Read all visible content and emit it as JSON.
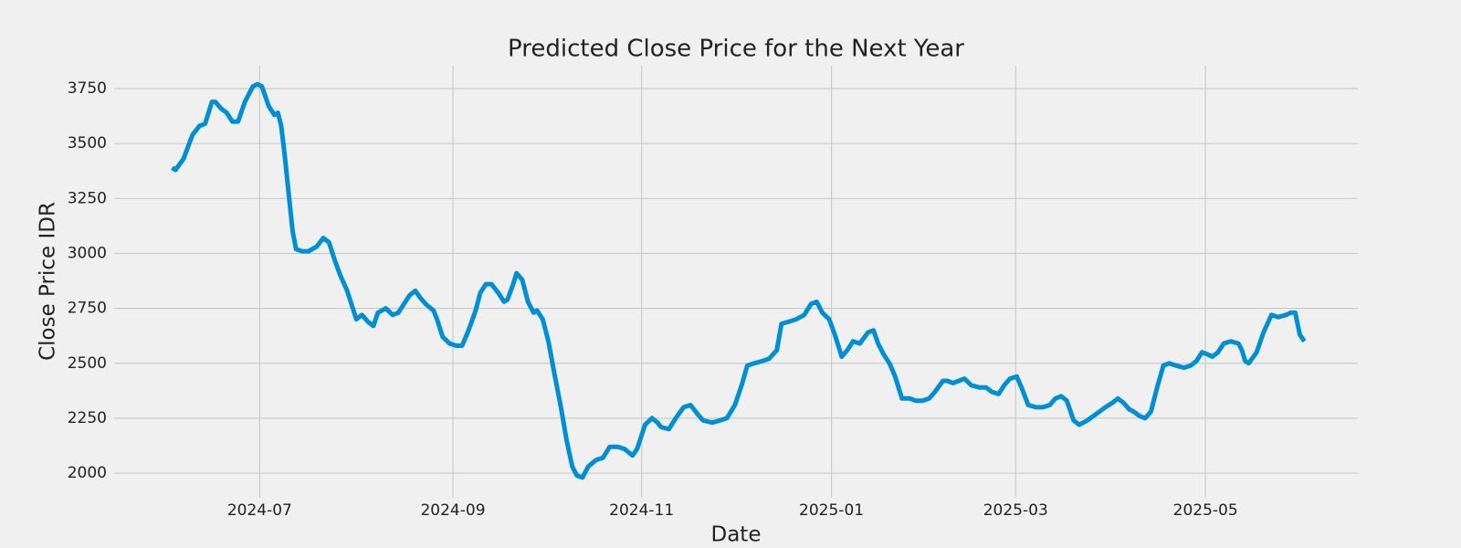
{
  "chart_data": {
    "type": "line",
    "title": "Predicted Close Price for the Next Year",
    "x_label": "Date",
    "y_label": "Close Price IDR",
    "color": "#008fd5",
    "grid": true,
    "x": [
      2024.42,
      2024.423,
      2024.43,
      2024.438,
      2024.444,
      2024.449,
      2024.455,
      2024.458,
      2024.463,
      2024.468,
      2024.473,
      2024.478,
      2024.484,
      2024.491,
      2024.495,
      2024.499,
      2024.505,
      2024.51,
      2024.513,
      2024.516,
      2024.519,
      2024.523,
      2024.526,
      2024.529,
      2024.534,
      2024.54,
      2024.547,
      2024.553,
      2024.558,
      2024.563,
      2024.568,
      2024.574,
      2024.579,
      2024.582,
      2024.587,
      2024.592,
      2024.597,
      2024.601,
      2024.608,
      2024.614,
      2024.619,
      2024.624,
      2024.629,
      2024.634,
      2024.638,
      2024.643,
      2024.65,
      2024.653,
      2024.658,
      2024.664,
      2024.67,
      2024.675,
      2024.68,
      2024.687,
      2024.691,
      2024.696,
      2024.701,
      2024.707,
      2024.712,
      2024.715,
      2024.72,
      2024.723,
      2024.728,
      2024.733,
      2024.738,
      2024.741,
      2024.746,
      2024.751,
      2024.756,
      2024.762,
      2024.767,
      2024.772,
      2024.776,
      2024.781,
      2024.786,
      2024.793,
      2024.799,
      2024.805,
      2024.812,
      2024.818,
      2024.825,
      2024.829,
      2024.836,
      2024.842,
      2024.847,
      2024.85,
      2024.857,
      2024.863,
      2024.87,
      2024.876,
      2024.882,
      2024.887,
      2024.895,
      2024.902,
      2024.908,
      2024.915,
      2024.921,
      2024.926,
      2024.932,
      2024.939,
      2024.945,
      2024.952,
      2024.956,
      2024.963,
      2024.969,
      2024.976,
      2024.982,
      2024.987,
      2024.992,
      2024.998,
      2025.003,
      2025.009,
      2025.014,
      2025.019,
      2025.025,
      2025.032,
      2025.037,
      2025.041,
      2025.046,
      2025.051,
      2025.056,
      2025.062,
      2025.069,
      2025.074,
      2025.08,
      2025.086,
      2025.091,
      2025.098,
      2025.102,
      2025.107,
      2025.112,
      2025.117,
      2025.123,
      2025.13,
      2025.136,
      2025.141,
      2025.147,
      2025.152,
      2025.157,
      2025.163,
      2025.168,
      2025.173,
      2025.18,
      2025.186,
      2025.192,
      2025.197,
      2025.202,
      2025.207,
      2025.213,
      2025.218,
      2025.225,
      2025.233,
      2025.241,
      2025.247,
      2025.252,
      2025.257,
      2025.262,
      2025.266,
      2025.271,
      2025.276,
      2025.281,
      2025.287,
      2025.292,
      2025.297,
      2025.303,
      2025.31,
      2025.316,
      2025.321,
      2025.326,
      2025.331,
      2025.335,
      2025.34,
      2025.345,
      2025.351,
      2025.358,
      2025.361,
      2025.364,
      2025.367,
      2025.374,
      2025.38,
      2025.387,
      2025.393,
      2025.4,
      2025.404,
      2025.408,
      2025.412,
      2025.416
    ],
    "values": [
      3390,
      3380,
      3430,
      3540,
      3580,
      3590,
      3690,
      3690,
      3660,
      3640,
      3600,
      3600,
      3690,
      3760,
      3770,
      3760,
      3670,
      3630,
      3640,
      3580,
      3450,
      3250,
      3100,
      3020,
      3010,
      3010,
      3030,
      3070,
      3050,
      2970,
      2900,
      2830,
      2750,
      2700,
      2720,
      2690,
      2670,
      2730,
      2750,
      2720,
      2730,
      2770,
      2810,
      2830,
      2800,
      2770,
      2740,
      2700,
      2620,
      2590,
      2580,
      2580,
      2640,
      2740,
      2820,
      2860,
      2860,
      2820,
      2780,
      2790,
      2860,
      2910,
      2880,
      2780,
      2730,
      2740,
      2700,
      2600,
      2460,
      2300,
      2150,
      2030,
      1990,
      1980,
      2030,
      2060,
      2070,
      2120,
      2120,
      2110,
      2080,
      2110,
      2220,
      2250,
      2230,
      2210,
      2200,
      2250,
      2300,
      2310,
      2270,
      2240,
      2230,
      2240,
      2250,
      2310,
      2400,
      2490,
      2500,
      2510,
      2520,
      2560,
      2680,
      2690,
      2700,
      2720,
      2770,
      2780,
      2730,
      2700,
      2630,
      2530,
      2560,
      2600,
      2590,
      2640,
      2650,
      2590,
      2540,
      2500,
      2440,
      2340,
      2340,
      2330,
      2330,
      2340,
      2370,
      2420,
      2420,
      2410,
      2420,
      2430,
      2400,
      2390,
      2390,
      2370,
      2360,
      2400,
      2430,
      2440,
      2380,
      2310,
      2300,
      2300,
      2310,
      2340,
      2350,
      2330,
      2240,
      2220,
      2240,
      2270,
      2300,
      2320,
      2340,
      2320,
      2290,
      2280,
      2260,
      2250,
      2280,
      2400,
      2490,
      2500,
      2490,
      2480,
      2490,
      2510,
      2550,
      2540,
      2530,
      2550,
      2590,
      2600,
      2590,
      2560,
      2510,
      2500,
      2550,
      2640,
      2720,
      2710,
      2720,
      2730,
      2730,
      2630,
      2600
    ],
    "xlim": [
      2024.369,
      2025.463
    ],
    "xticks": [
      {
        "value": 2024.497,
        "label": "2024-07"
      },
      {
        "value": 2024.667,
        "label": "2024-09"
      },
      {
        "value": 2024.833,
        "label": "2024-11"
      },
      {
        "value": 2025.0,
        "label": "2025-01"
      },
      {
        "value": 2025.162,
        "label": "2025-03"
      },
      {
        "value": 2025.329,
        "label": "2025-05"
      }
    ],
    "ylim": [
      1888,
      3854
    ],
    "yticks": [
      2000,
      2250,
      2500,
      2750,
      3000,
      3250,
      3500,
      3750
    ]
  }
}
